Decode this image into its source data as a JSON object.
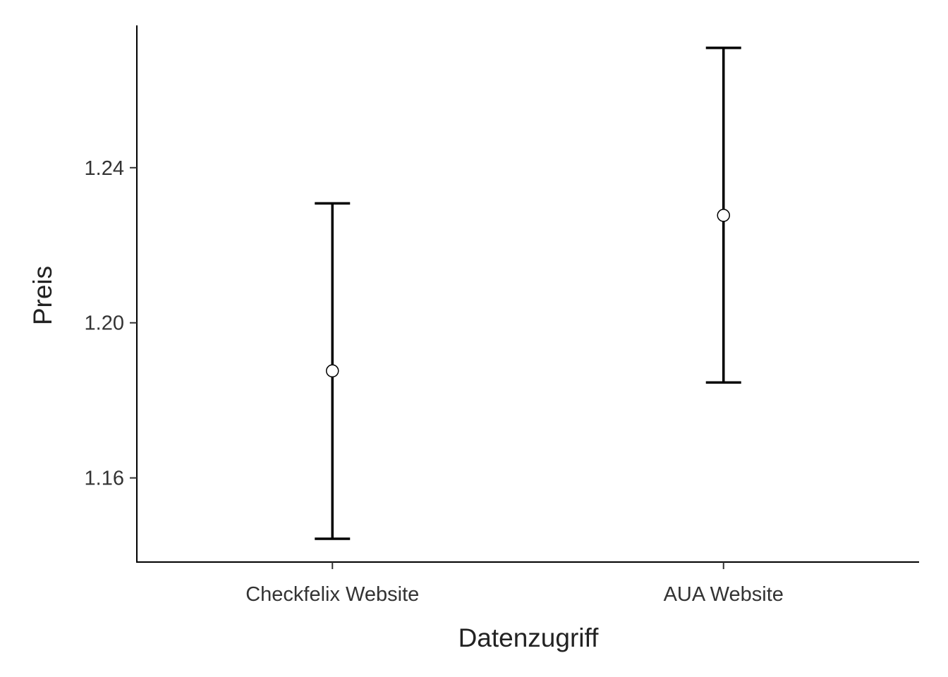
{
  "chart_data": {
    "type": "errorbar",
    "title": "",
    "xlabel": "Datenzugriff",
    "ylabel": "Preis",
    "categories": [
      "Checkfelix Website",
      "AUA Website"
    ],
    "series": [
      {
        "means": [
          1.1876,
          1.2277
        ],
        "lower": [
          1.1443,
          1.1846
        ],
        "upper": [
          1.2308,
          1.2709
        ]
      }
    ],
    "yticks": [
      1.16,
      1.2,
      1.24
    ],
    "ytick_labels": [
      "1.16",
      "1.20",
      "1.24"
    ],
    "ylim": [
      1.1383,
      1.2767
    ],
    "grid": false,
    "legend": "none",
    "colors": {
      "line": "#000000",
      "point_fill": "#ffffff",
      "text": "#333333"
    }
  }
}
